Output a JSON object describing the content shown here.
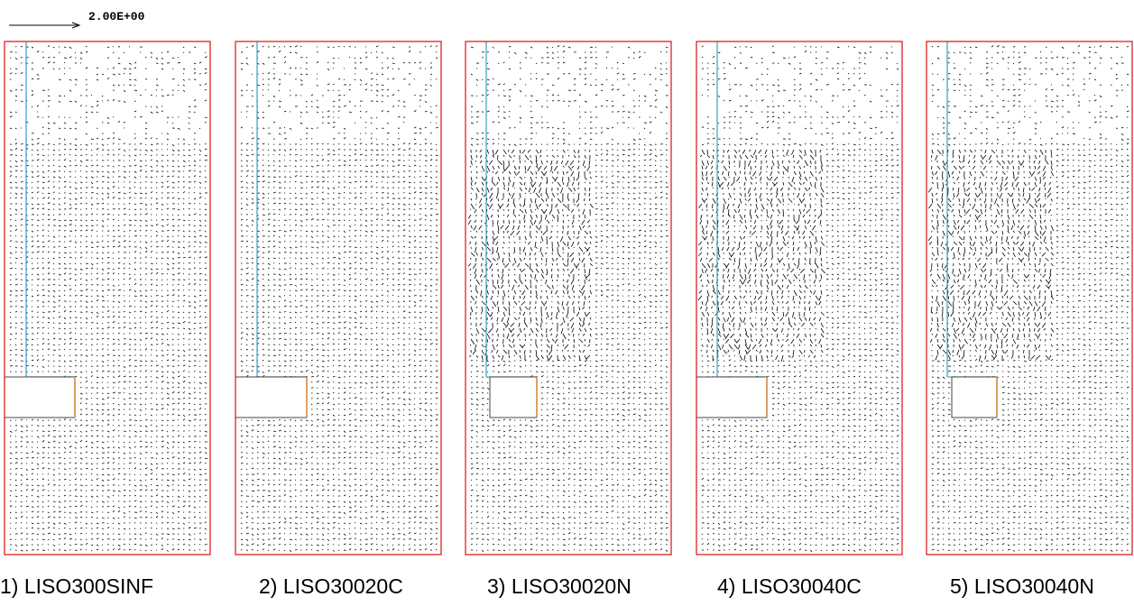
{
  "scale_label": "2.00E+00",
  "panels": [
    {
      "caption": "1) LISO300SINF"
    },
    {
      "caption": "2) LISO30020C"
    },
    {
      "caption": "3) LISO30020N"
    },
    {
      "caption": "4) LISO30040C"
    },
    {
      "caption": "5) LISO30040N"
    }
  ]
}
